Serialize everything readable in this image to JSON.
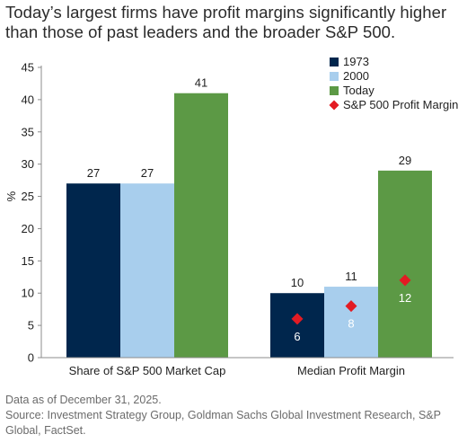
{
  "title": "Today’s largest firms have profit margins significantly higher than those of past leaders and the broader S&P 500.",
  "notes": {
    "date": "Data as of December 31, 2025.",
    "source": "Source: Investment Strategy Group, Goldman Sachs Global Investment Research, S&P Global, FactSet."
  },
  "chart_data": {
    "type": "bar",
    "categories": [
      "Share of S&P 500 Market Cap",
      "Median Profit Margin"
    ],
    "series": [
      {
        "name": "1973",
        "values": [
          27,
          10
        ],
        "color": "#00264d"
      },
      {
        "name": "2000",
        "values": [
          27,
          11
        ],
        "color": "#a8ceed"
      },
      {
        "name": "Today",
        "values": [
          41,
          29
        ],
        "color": "#5c9945"
      }
    ],
    "sp500_profit_margin": {
      "name": "S&P 500 Profit Margin",
      "values": [
        null,
        null,
        null,
        6,
        8,
        12
      ],
      "color": "#e31b23"
    },
    "ylabel": "%",
    "ylim": [
      0,
      45
    ],
    "yticks": [
      0,
      5,
      10,
      15,
      20,
      25,
      30,
      35,
      40,
      45
    ],
    "grid": false,
    "legend_position": "top-right"
  }
}
